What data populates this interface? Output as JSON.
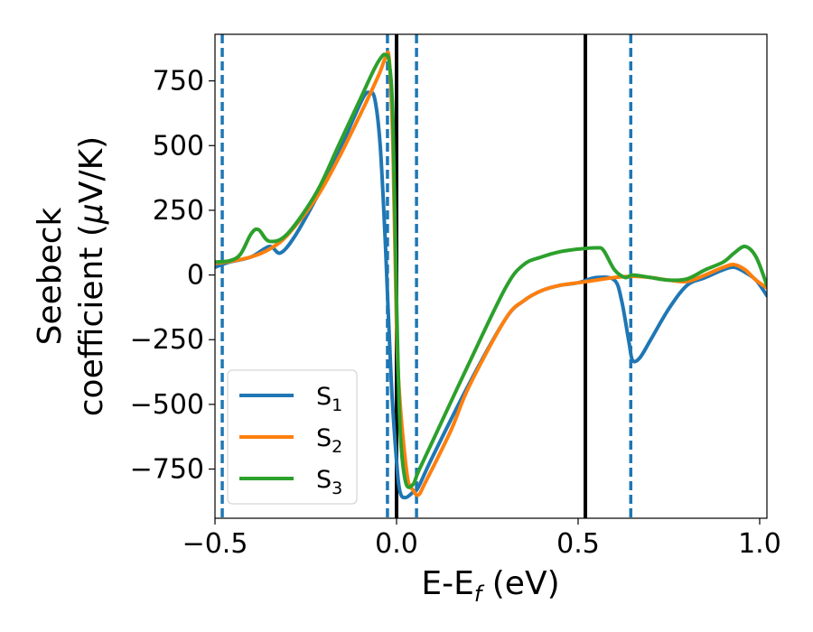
{
  "chart_data": {
    "type": "line",
    "xlabel": "E-E",
    "xlabel_sub": "f",
    "xlabel_unit": " (eV)",
    "ylabel_line1": "Seebeck",
    "ylabel_line2_prefix": "coefficient  (",
    "ylabel_mu": "μ",
    "ylabel_line2_suffix": "V/K)",
    "xlim": [
      -0.5,
      1.02
    ],
    "ylim": [
      -940,
      930
    ],
    "x_ticks": [
      -0.5,
      0.0,
      0.5,
      1.0
    ],
    "x_tick_labels": [
      "−0.5",
      "0.0",
      "0.5",
      "1.0"
    ],
    "y_ticks": [
      -750,
      -500,
      -250,
      0,
      250,
      500,
      750
    ],
    "y_tick_labels": [
      "−750",
      "−500",
      "−250",
      "0",
      "250",
      "500",
      "750"
    ],
    "legend_position": "lower-left",
    "grid": false,
    "vertical_lines": [
      {
        "x": -0.48,
        "style": "dashed",
        "color": "#1f77b4"
      },
      {
        "x": -0.025,
        "style": "dashed",
        "color": "#1f77b4"
      },
      {
        "x": 0.0,
        "style": "solid",
        "color": "#000000"
      },
      {
        "x": 0.055,
        "style": "dashed",
        "color": "#1f77b4"
      },
      {
        "x": 0.52,
        "style": "solid",
        "color": "#000000"
      },
      {
        "x": 0.645,
        "style": "dashed",
        "color": "#1f77b4"
      }
    ],
    "series": [
      {
        "name": "S",
        "sub": "1",
        "color": "#1f77b4",
        "points": [
          [
            -0.5,
            30
          ],
          [
            -0.46,
            50
          ],
          [
            -0.4,
            70
          ],
          [
            -0.35,
            110
          ],
          [
            -0.32,
            85
          ],
          [
            -0.28,
            150
          ],
          [
            -0.22,
            300
          ],
          [
            -0.16,
            470
          ],
          [
            -0.12,
            600
          ],
          [
            -0.09,
            690
          ],
          [
            -0.075,
            705
          ],
          [
            -0.06,
            680
          ],
          [
            -0.045,
            500
          ],
          [
            -0.03,
            100
          ],
          [
            -0.015,
            -400
          ],
          [
            0.0,
            -720
          ],
          [
            0.01,
            -840
          ],
          [
            0.025,
            -860
          ],
          [
            0.045,
            -840
          ],
          [
            0.06,
            -820
          ],
          [
            0.1,
            -700
          ],
          [
            0.2,
            -420
          ],
          [
            0.3,
            -170
          ],
          [
            0.35,
            -100
          ],
          [
            0.4,
            -60
          ],
          [
            0.45,
            -40
          ],
          [
            0.5,
            -30
          ],
          [
            0.55,
            -10
          ],
          [
            0.6,
            -20
          ],
          [
            0.62,
            -100
          ],
          [
            0.64,
            -260
          ],
          [
            0.65,
            -330
          ],
          [
            0.67,
            -320
          ],
          [
            0.7,
            -250
          ],
          [
            0.75,
            -130
          ],
          [
            0.8,
            -40
          ],
          [
            0.85,
            -10
          ],
          [
            0.9,
            20
          ],
          [
            0.93,
            30
          ],
          [
            0.96,
            10
          ],
          [
            0.99,
            -20
          ],
          [
            1.02,
            -80
          ]
        ]
      },
      {
        "name": "S",
        "sub": "2",
        "color": "#ff7f0e",
        "points": [
          [
            -0.5,
            45
          ],
          [
            -0.46,
            52
          ],
          [
            -0.4,
            70
          ],
          [
            -0.35,
            100
          ],
          [
            -0.3,
            155
          ],
          [
            -0.22,
            300
          ],
          [
            -0.16,
            450
          ],
          [
            -0.1,
            620
          ],
          [
            -0.05,
            770
          ],
          [
            -0.03,
            840
          ],
          [
            -0.02,
            830
          ],
          [
            -0.01,
            500
          ],
          [
            0.0,
            -200
          ],
          [
            0.01,
            -500
          ],
          [
            0.03,
            -780
          ],
          [
            0.045,
            -830
          ],
          [
            0.06,
            -850
          ],
          [
            0.08,
            -800
          ],
          [
            0.15,
            -600
          ],
          [
            0.2,
            -430
          ],
          [
            0.3,
            -170
          ],
          [
            0.35,
            -100
          ],
          [
            0.4,
            -60
          ],
          [
            0.45,
            -40
          ],
          [
            0.5,
            -30
          ],
          [
            0.55,
            -20
          ],
          [
            0.6,
            -10
          ],
          [
            0.65,
            -5
          ],
          [
            0.7,
            -10
          ],
          [
            0.75,
            -20
          ],
          [
            0.8,
            -25
          ],
          [
            0.85,
            0
          ],
          [
            0.9,
            30
          ],
          [
            0.93,
            40
          ],
          [
            0.96,
            20
          ],
          [
            0.99,
            -20
          ],
          [
            1.02,
            -50
          ]
        ]
      },
      {
        "name": "S",
        "sub": "3",
        "color": "#2ca02c",
        "points": [
          [
            -0.5,
            50
          ],
          [
            -0.46,
            55
          ],
          [
            -0.43,
            80
          ],
          [
            -0.4,
            160
          ],
          [
            -0.38,
            175
          ],
          [
            -0.35,
            130
          ],
          [
            -0.3,
            160
          ],
          [
            -0.22,
            320
          ],
          [
            -0.16,
            500
          ],
          [
            -0.1,
            680
          ],
          [
            -0.06,
            800
          ],
          [
            -0.04,
            845
          ],
          [
            -0.03,
            850
          ],
          [
            -0.02,
            820
          ],
          [
            -0.01,
            600
          ],
          [
            0.0,
            -100
          ],
          [
            0.01,
            -600
          ],
          [
            0.025,
            -800
          ],
          [
            0.045,
            -810
          ],
          [
            0.06,
            -760
          ],
          [
            0.1,
            -640
          ],
          [
            0.2,
            -340
          ],
          [
            0.3,
            -50
          ],
          [
            0.35,
            40
          ],
          [
            0.4,
            70
          ],
          [
            0.45,
            90
          ],
          [
            0.5,
            100
          ],
          [
            0.55,
            105
          ],
          [
            0.57,
            95
          ],
          [
            0.6,
            20
          ],
          [
            0.63,
            -10
          ],
          [
            0.65,
            0
          ],
          [
            0.7,
            -10
          ],
          [
            0.75,
            -20
          ],
          [
            0.8,
            -15
          ],
          [
            0.85,
            20
          ],
          [
            0.9,
            50
          ],
          [
            0.93,
            85
          ],
          [
            0.96,
            110
          ],
          [
            0.99,
            70
          ],
          [
            1.02,
            -40
          ]
        ]
      }
    ]
  }
}
